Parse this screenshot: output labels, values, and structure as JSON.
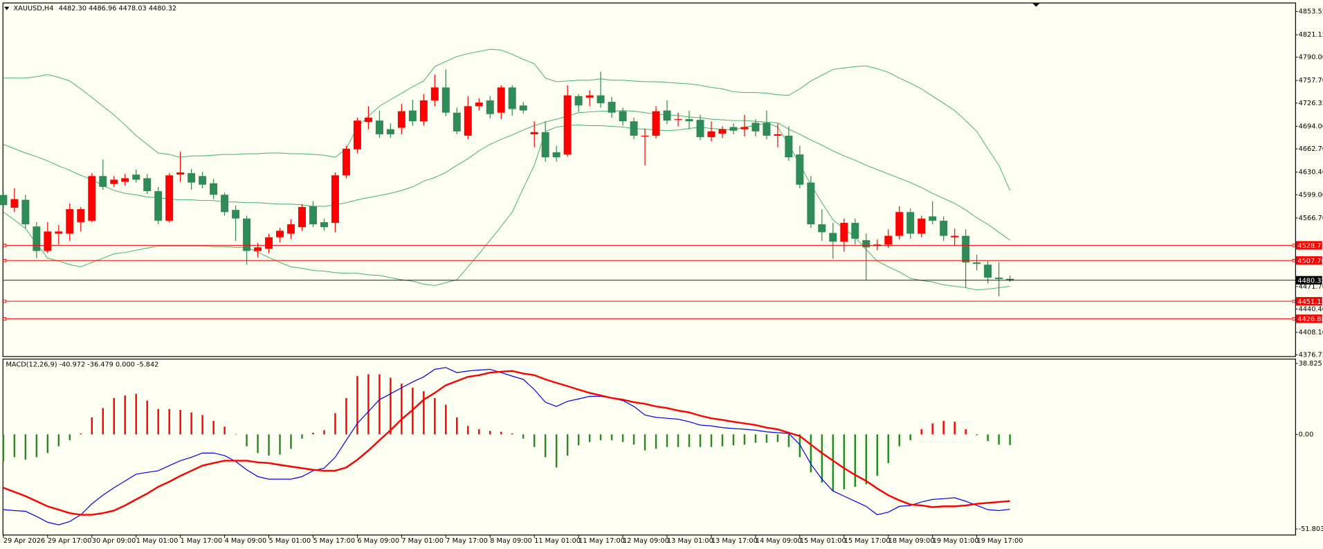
{
  "chart_data": [
    {
      "type": "candlestick",
      "title": "XAUUSD,H4",
      "subtitle": "4482.30 4486.96 4478.03 4480.32",
      "categories": [
        "29 Apr 2026",
        null,
        null,
        null,
        "29 Apr 17:00",
        null,
        null,
        null,
        "30 Apr 09:00",
        null,
        null,
        null,
        "1 May 01:00",
        null,
        null,
        null,
        "1 May 17:00",
        null,
        null,
        null,
        "4 May 09:00",
        null,
        null,
        null,
        "5 May 01:00",
        null,
        null,
        null,
        "5 May 17:00",
        null,
        null,
        null,
        "6 May 09:00",
        null,
        null,
        null,
        "7 May 01:00",
        null,
        null,
        null,
        "7 May 17:00",
        null,
        null,
        null,
        "8 May 09:00",
        null,
        null,
        null,
        "11 May 01:00",
        null,
        null,
        null,
        "11 May 17:00",
        null,
        null,
        null,
        "12 May 09:00",
        null,
        null,
        null,
        "13 May 01:00",
        null,
        null,
        null,
        "13 May 17:00",
        null,
        null,
        null,
        "14 May 09:00",
        null,
        null,
        null,
        "15 May 01:00",
        null,
        null,
        null,
        "15 May 17:00",
        null,
        null,
        null,
        "18 May 09:00",
        null,
        null,
        null,
        "19 May 01:00",
        null,
        null,
        null,
        "19 May 17:00",
        null,
        null,
        null
      ],
      "open": [
        4598.7,
        4581,
        4592,
        4555,
        4521,
        4545,
        4545,
        4561,
        4563,
        4625,
        4614,
        4617,
        4627,
        4622,
        4604,
        4563,
        4627,
        4629,
        4625,
        4615,
        4599,
        4578,
        4566,
        4521,
        4524,
        4540,
        4545,
        4554,
        4583,
        4561,
        4560,
        4626,
        4662,
        4700,
        4702,
        4690,
        4692,
        4716,
        4701,
        4730,
        4748,
        4713,
        4681,
        4722,
        4730,
        4713,
        4748,
        4723,
        4683,
        4686,
        4658,
        4655,
        4736,
        4734,
        4737,
        4728,
        4715,
        4701,
        4680,
        4681,
        4716,
        4703,
        4704,
        4703,
        4679,
        4684,
        4693,
        4690,
        4699,
        4699,
        4681,
        4681,
        4655,
        4616,
        4558,
        4546,
        4534,
        4560,
        4536,
        4528,
        4530,
        4542,
        4575,
        4545,
        4569,
        4563,
        4540,
        4542,
        4505,
        4502,
        4484,
        4482.3
      ],
      "high": [
        4604,
        4608,
        4599,
        4561,
        4561,
        4557,
        4587,
        4582,
        4629,
        4648,
        4625,
        4628,
        4634,
        4628,
        4610,
        4629,
        4659,
        4635,
        4631,
        4621,
        4602,
        4584,
        4570,
        4532,
        4545,
        4553,
        4565,
        4586,
        4590,
        4566,
        4630,
        4667,
        4706,
        4722,
        4716,
        4698,
        4725,
        4731,
        4739,
        4766,
        4773,
        4720,
        4736,
        4733,
        4736,
        4751,
        4751,
        4728,
        4701,
        4701,
        4667,
        4751,
        4739,
        4744,
        4770,
        4735,
        4720,
        4706,
        4691,
        4722,
        4730,
        4713,
        4716,
        4710,
        4701,
        4694,
        4698,
        4710,
        4704,
        4716,
        4698,
        4694,
        4667,
        4625,
        4579,
        4560,
        4566,
        4566,
        4545,
        4537,
        4551,
        4583,
        4580,
        4570,
        4590,
        4569,
        4552,
        4551,
        4516,
        4507,
        4505,
        4486.96
      ],
      "low": [
        4580,
        4575,
        4552,
        4511,
        4518,
        4530,
        4535,
        4548,
        4561,
        4606,
        4610,
        4612,
        4616,
        4600,
        4558,
        4561,
        4617,
        4606,
        4608,
        4593,
        4570,
        4535,
        4502,
        4512,
        4518,
        4533,
        4538,
        4549,
        4554,
        4549,
        4547,
        4622,
        4657,
        4690,
        4678,
        4678,
        4683,
        4695,
        4695,
        4722,
        4708,
        4683,
        4676,
        4716,
        4705,
        4704,
        4709,
        4712,
        4665,
        4645,
        4645,
        4652,
        4714,
        4722,
        4720,
        4706,
        4695,
        4676,
        4640,
        4677,
        4697,
        4694,
        4690,
        4675,
        4673,
        4678,
        4683,
        4680,
        4680,
        4676,
        4665,
        4646,
        4608,
        4553,
        4535,
        4510,
        4520,
        4530,
        4481,
        4522,
        4525,
        4537,
        4538,
        4540,
        4558,
        4535,
        4528,
        4470,
        4494,
        4476,
        4458,
        4478.03
      ],
      "close": [
        4584.6,
        4593,
        4558,
        4521,
        4548,
        4548,
        4579,
        4579,
        4625,
        4610,
        4620,
        4622,
        4620,
        4604,
        4563,
        4626,
        4630,
        4616,
        4613,
        4599,
        4575,
        4566,
        4521,
        4526,
        4540,
        4549,
        4558,
        4582,
        4558,
        4554,
        4626,
        4663,
        4702,
        4706,
        4683,
        4683,
        4715,
        4701,
        4730,
        4748,
        4713,
        4687,
        4722,
        4727,
        4711,
        4748,
        4718,
        4716,
        4686,
        4651,
        4651,
        4737,
        4723,
        4737,
        4726,
        4713,
        4701,
        4681,
        4681,
        4715,
        4702,
        4704,
        4701,
        4679,
        4687,
        4690,
        4688,
        4693,
        4687,
        4681,
        4683,
        4651,
        4613,
        4558,
        4547,
        4534,
        4560,
        4538,
        4526,
        4530,
        4542,
        4575,
        4545,
        4566,
        4563,
        4542,
        4542,
        4505,
        4503,
        4484,
        4482,
        4480.32
      ],
      "up_color": "#ff0000",
      "down_color": "#2e8b57",
      "bands": [
        {
          "color": "#3cb371",
          "values": [
            4761,
            4761,
            4761,
            4763,
            4766,
            4762,
            4757,
            4746,
            4734,
            4722,
            4710,
            4696,
            4681,
            4669,
            4657,
            4655,
            4651,
            4653,
            4653,
            4654,
            4655,
            4655,
            4656,
            4656,
            4657,
            4657,
            4656,
            4656,
            4655,
            4654,
            4651,
            4663,
            4693,
            4708,
            4722,
            4731,
            4740,
            4749,
            4757,
            4777,
            4784,
            4791,
            4795,
            4798,
            4801,
            4800,
            4794,
            4787,
            4781,
            4761,
            4756,
            4757,
            4758,
            4758,
            4760,
            4758,
            4758,
            4757,
            4756,
            4756,
            4755,
            4754,
            4753,
            4751,
            4748,
            4746,
            4742,
            4741,
            4741,
            4740,
            4738,
            4737,
            4746,
            4757,
            4765,
            4773,
            4775,
            4777,
            4778,
            4774,
            4769,
            4761,
            4754,
            4746,
            4736,
            4726,
            4716,
            4702,
            4687,
            4663,
            4640,
            4605
          ]
        },
        {
          "color": "#3cb371",
          "values": [
            4669,
            4663,
            4657,
            4652,
            4646,
            4639,
            4633,
            4626,
            4620,
            4612,
            4605,
            4601,
            4599,
            4596,
            4595,
            4593,
            4592,
            4592,
            4591,
            4591,
            4589,
            4589,
            4588,
            4588,
            4587,
            4586,
            4586,
            4585,
            4583,
            4583,
            4585,
            4588,
            4592,
            4595,
            4598,
            4601,
            4605,
            4610,
            4618,
            4623,
            4630,
            4640,
            4649,
            4660,
            4669,
            4676,
            4682,
            4689,
            4695,
            4700,
            4704,
            4708,
            4713,
            4714,
            4715,
            4715,
            4716,
            4715,
            4713,
            4711,
            4710,
            4709,
            4707,
            4706,
            4704,
            4703,
            4702,
            4702,
            4701,
            4700,
            4699,
            4690,
            4683,
            4675,
            4668,
            4660,
            4653,
            4647,
            4640,
            4634,
            4628,
            4622,
            4616,
            4609,
            4601,
            4594,
            4587,
            4578,
            4567,
            4558,
            4547,
            4536
          ]
        },
        {
          "color": "#3cb371",
          "values": [
            4575,
            4564,
            4552,
            4531,
            4511,
            4507,
            4502,
            4499,
            4505,
            4511,
            4517,
            4519,
            4522,
            4525,
            4528,
            4528,
            4528,
            4528,
            4528,
            4527,
            4527,
            4526,
            4526,
            4519,
            4512,
            4505,
            4499,
            4497,
            4494,
            4493,
            4491,
            4490,
            4490,
            4488,
            4487,
            4484,
            4481,
            4479,
            4475,
            4473,
            4477,
            4481,
            4499,
            4517,
            4536,
            4555,
            4575,
            4608,
            4640,
            4687,
            4693,
            4695,
            4696,
            4695,
            4695,
            4694,
            4693,
            4691,
            4690,
            4689,
            4688,
            4689,
            4691,
            4693,
            4691,
            4690,
            4689,
            4693,
            4695,
            4699,
            4693,
            4669,
            4641,
            4613,
            4588,
            4564,
            4552,
            4540,
            4523,
            4507,
            4499,
            4492,
            4483,
            4480,
            4478,
            4474,
            4472,
            4470,
            4467,
            4468,
            4470,
            4472
          ]
        }
      ],
      "levels": [
        4528.77,
        4507.76,
        4451.15,
        4426.88
      ],
      "level_color": "#ff0000",
      "last_price": 4480.32,
      "last_price_color": "#000000",
      "ylim": [
        4374.4,
        4865.3
      ],
      "yticks": [
        4853.55,
        4821.15,
        {
          "value": 4790,
          "label": "4790.00"
        },
        {
          "value": 4757.7,
          "label": "4757.70"
        },
        4726.35,
        {
          "value": 4694,
          "label": "4694.00"
        },
        {
          "value": 4662.7,
          "label": "4662.70"
        },
        {
          "value": 4630.4,
          "label": "4630.40"
        },
        {
          "value": 4599,
          "label": "4599.00"
        },
        {
          "value": 4566.7,
          "label": "4566.70"
        },
        {
          "value": 4471.7,
          "label": "4471.70"
        },
        {
          "value": 4440.4,
          "label": "4440.40"
        },
        {
          "value": 4408.1,
          "label": "4408.10"
        },
        4376.75
      ]
    },
    {
      "type": "macd",
      "title": "MACD(12,26,9) -40.972 -36.479 0.000 -5.842",
      "histogram": [
        -14.8,
        -12.5,
        -13.9,
        -12.5,
        -10.2,
        -6.5,
        -3.2,
        0.5,
        9.3,
        14.4,
        19.9,
        21.3,
        22.2,
        18.5,
        13.9,
        13.9,
        13.4,
        12.0,
        10.6,
        7.4,
        4.2,
        0.2,
        -6.5,
        -10.2,
        -11.6,
        -11.1,
        -7.9,
        -2.3,
        0.9,
        2.3,
        11.6,
        19.9,
        31.9,
        32.9,
        32.9,
        31.0,
        27.8,
        25.5,
        23.6,
        19.9,
        16.2,
        9.3,
        4.6,
        2.8,
        1.9,
        1.4,
        0.5,
        -2.3,
        -6.9,
        -12.5,
        -18.1,
        -11.6,
        -6.0,
        -4.2,
        -3.2,
        -3.2,
        -4.2,
        -5.6,
        -8.8,
        -7.9,
        -6.9,
        -6.9,
        -6.9,
        -6.9,
        -6.9,
        -6.5,
        -6.0,
        -5.6,
        -4.6,
        -4.6,
        -4.2,
        -6.9,
        -12.5,
        -20.8,
        -26.4,
        -31.0,
        -30.1,
        -28.7,
        -27.3,
        -22.7,
        -15.7,
        -6.5,
        -3.2,
        2.8,
        6.0,
        7.4,
        6.9,
        2.8,
        -0.5,
        -3.7,
        -5.6,
        -5.842
      ],
      "hist_up_color": "#ff0000",
      "hist_down_color": "#228b22",
      "series": [
        {
          "color": "#0000ff",
          "width": 1,
          "values": [
            -41.2,
            -41.7,
            -42.1,
            -44.9,
            -48.1,
            -49.5,
            -47.7,
            -44.0,
            -38.0,
            -33.3,
            -29.2,
            -25.5,
            -21.8,
            -20.8,
            -19.9,
            -17.1,
            -14.4,
            -12.5,
            -10.2,
            -10.2,
            -11.6,
            -14.8,
            -19.4,
            -23.1,
            -24.5,
            -24.5,
            -24.5,
            -23.1,
            -19.9,
            -18.5,
            -12.5,
            -3.2,
            6.0,
            12.5,
            19.0,
            22.2,
            25.5,
            28.7,
            31.5,
            35.6,
            36.6,
            33.8,
            34.7,
            35.2,
            35.6,
            33.8,
            31.9,
            30.1,
            24.5,
            17.6,
            15.3,
            18.1,
            19.4,
            20.8,
            20.8,
            19.9,
            18.5,
            15.3,
            10.6,
            9.3,
            8.8,
            8.3,
            6.9,
            5.1,
            4.6,
            3.7,
            3.2,
            2.8,
            2.3,
            1.4,
            0.9,
            0.5,
            -5.6,
            -16.2,
            -24.5,
            -31.0,
            -33.8,
            -36.6,
            -39.4,
            -44.0,
            -42.6,
            -39.4,
            -38.9,
            -37.0,
            -35.6,
            -35.2,
            -34.7,
            -36.6,
            -38.9,
            -41.2,
            -41.7,
            -40.972
          ]
        },
        {
          "color": "#ff0000",
          "width": 2,
          "values": [
            -29.2,
            -31.5,
            -33.8,
            -36.6,
            -39.4,
            -41.2,
            -43.1,
            -44.0,
            -44.0,
            -43.1,
            -41.7,
            -38.9,
            -35.6,
            -32.4,
            -28.7,
            -25.9,
            -22.7,
            -19.9,
            -17.1,
            -15.7,
            -14.4,
            -14.4,
            -14.4,
            -15.3,
            -15.7,
            -16.7,
            -17.6,
            -18.5,
            -19.4,
            -19.9,
            -19.9,
            -18.1,
            -13.9,
            -8.8,
            -3.2,
            2.3,
            8.3,
            13.4,
            19.0,
            22.7,
            26.9,
            29.2,
            31.5,
            32.4,
            33.8,
            34.3,
            34.7,
            33.3,
            32.4,
            30.1,
            28.2,
            26.4,
            24.5,
            22.7,
            21.3,
            19.9,
            19.0,
            17.6,
            16.7,
            15.3,
            14.4,
            13.0,
            12.0,
            10.2,
            8.8,
            7.9,
            6.9,
            6.0,
            5.1,
            3.7,
            2.8,
            0.9,
            -0.9,
            -5.6,
            -10.2,
            -14.4,
            -18.5,
            -22.2,
            -25.5,
            -29.6,
            -33.3,
            -36.1,
            -38.4,
            -38.9,
            -39.8,
            -39.4,
            -39.4,
            -38.9,
            -38.0,
            -37.5,
            -37.0,
            -36.479
          ]
        }
      ],
      "ylim": [
        -55.1,
        41.2
      ],
      "yticks": [
        38.825,
        {
          "value": 0,
          "label": "0.00"
        },
        -51.803
      ]
    }
  ]
}
